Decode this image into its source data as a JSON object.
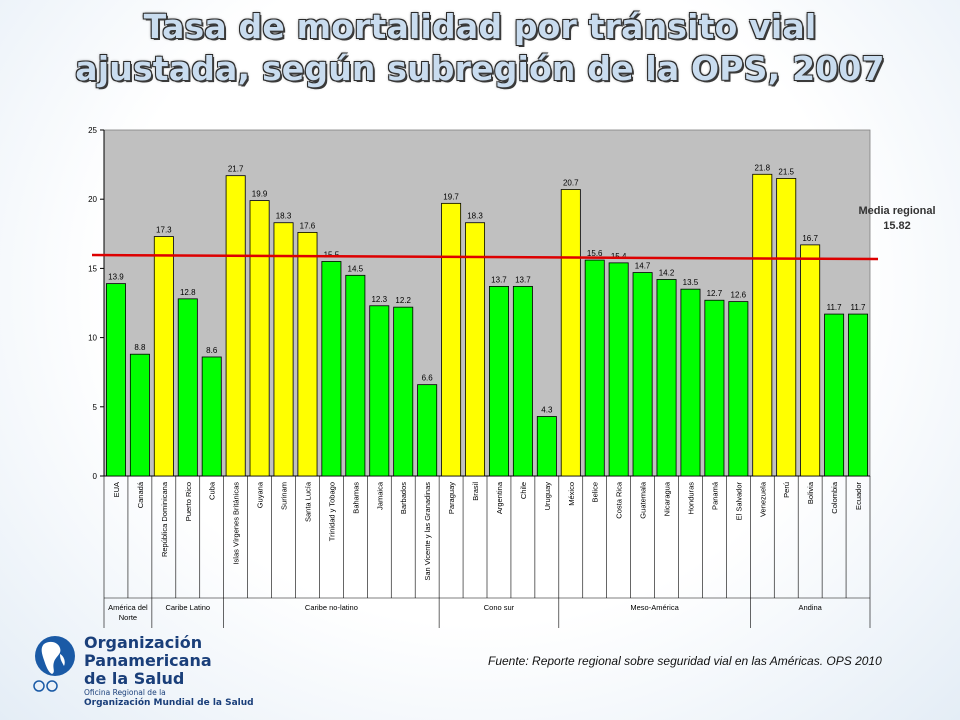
{
  "title": {
    "line1": "Tasa de mortalidad por tránsito vial",
    "line2": "ajustada, según subregión de la OPS, 2007"
  },
  "chart_data": {
    "type": "bar",
    "ylim": [
      0,
      25
    ],
    "yticks": [
      "0",
      "5",
      "10",
      "15",
      "20",
      "25"
    ],
    "categories": [
      "EUA",
      "Canadá",
      "República Dominicana",
      "Puerto Rico",
      "Cuba",
      "Islas Vírgenes Británicas",
      "Guyana",
      "Surinam",
      "Santa Lucía",
      "Trinidad y Tobago",
      "Bahamas",
      "Jamaica",
      "Barbados",
      "San Vicente y las Granadinas",
      "Paraguay",
      "Brasil",
      "Argentina",
      "Chile",
      "Uruguay",
      "México",
      "Belice",
      "Costa Rica",
      "Guatemala",
      "Nicaragua",
      "Honduras",
      "Panamá",
      "El Salvador",
      "Venezuela",
      "Perú",
      "Bolivia",
      "Colombia",
      "Ecuador"
    ],
    "values": [
      13.9,
      8.8,
      17.3,
      12.8,
      8.6,
      21.7,
      19.9,
      18.3,
      17.6,
      15.5,
      14.5,
      12.3,
      12.2,
      6.6,
      19.7,
      18.3,
      13.7,
      13.7,
      4.3,
      20.7,
      15.6,
      15.4,
      14.7,
      14.2,
      13.5,
      12.7,
      12.6,
      21.8,
      21.5,
      16.7,
      11.7,
      11.7
    ],
    "value_labels": [
      "13.9",
      "8.8",
      "17.3",
      "12.8",
      "8.6",
      "21.7",
      "19.9",
      "18.3",
      "17.6",
      "15.5",
      "14.5",
      "12.3",
      "12.2",
      "6.6",
      "19.7",
      "18.3",
      "13.7",
      "13.7",
      "4.3",
      "20.7",
      "15.6",
      "15.4",
      "14.7",
      "14.2",
      "13.5",
      "12.7",
      "12.6",
      "21.8",
      "21.5",
      "16.7",
      "11.7",
      "11.7"
    ],
    "bar_color_class": [
      "green",
      "green",
      "yellow",
      "green",
      "green",
      "yellow",
      "yellow",
      "yellow",
      "yellow",
      "green",
      "green",
      "green",
      "green",
      "green",
      "yellow",
      "yellow",
      "green",
      "green",
      "green",
      "yellow",
      "green",
      "green",
      "green",
      "green",
      "green",
      "green",
      "green",
      "yellow",
      "yellow",
      "yellow",
      "green",
      "green"
    ],
    "groups": [
      {
        "label": "América del Norte",
        "start": 0,
        "end": 1
      },
      {
        "label": "Caribe Latino",
        "start": 2,
        "end": 4
      },
      {
        "label": "Caribe no-latino",
        "start": 5,
        "end": 13
      },
      {
        "label": "Cono sur",
        "start": 14,
        "end": 18
      },
      {
        "label": "Meso-América",
        "start": 19,
        "end": 26
      },
      {
        "label": "Andina",
        "start": 27,
        "end": 31
      }
    ],
    "reference_line": {
      "label": "Media regional",
      "value_label": "15.82",
      "value": 15.82
    },
    "grid": false,
    "colors": {
      "green": "#00ff00",
      "yellow": "#ffff00",
      "plot_bg": "#c0c0c0",
      "reference": "#dd0000"
    }
  },
  "logo": {
    "line1": "Organización",
    "line2": "Panamericana",
    "line3": "de la Salud",
    "sub1": "Oficina Regional de la",
    "sub2": "Organización Mundial de la Salud"
  },
  "source": "Fuente: Reporte regional sobre seguridad vial en las Américas. OPS 2010"
}
